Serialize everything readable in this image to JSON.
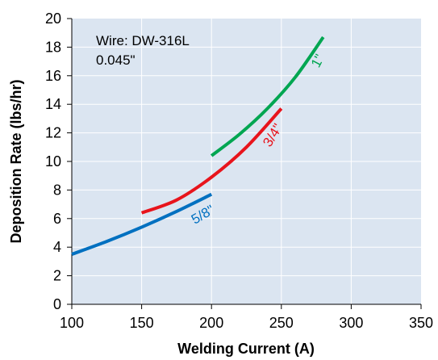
{
  "chart_data": {
    "type": "line",
    "xlabel": "Welding Current (A)",
    "ylabel": "Deposition Rate (lbs/hr)",
    "xlim": [
      100,
      350
    ],
    "ylim": [
      0,
      20
    ],
    "x_ticks": [
      "100",
      "150",
      "200",
      "250",
      "300",
      "350"
    ],
    "y_ticks": [
      "0",
      "2",
      "4",
      "6",
      "8",
      "10",
      "12",
      "14",
      "16",
      "18",
      "20"
    ],
    "grid": true,
    "background_color": "#dbe5f1",
    "grid_color": "#ffffff",
    "annotation": {
      "line1": "Wire: DW-316L",
      "line2": "0.045\""
    },
    "series": [
      {
        "name": "5/8\"",
        "color": "#0070c0",
        "x": [
          100,
          125,
          150,
          175,
          200
        ],
        "y": [
          3.5,
          4.4,
          5.4,
          6.5,
          7.7
        ]
      },
      {
        "name": "3/4\"",
        "color": "#e8141c",
        "x": [
          150,
          175,
          200,
          225,
          250
        ],
        "y": [
          6.4,
          7.3,
          8.9,
          11.0,
          13.7
        ]
      },
      {
        "name": "1\"",
        "color": "#00a651",
        "x": [
          200,
          220,
          240,
          260,
          280
        ],
        "y": [
          10.4,
          11.9,
          13.7,
          15.9,
          18.7
        ]
      }
    ]
  }
}
